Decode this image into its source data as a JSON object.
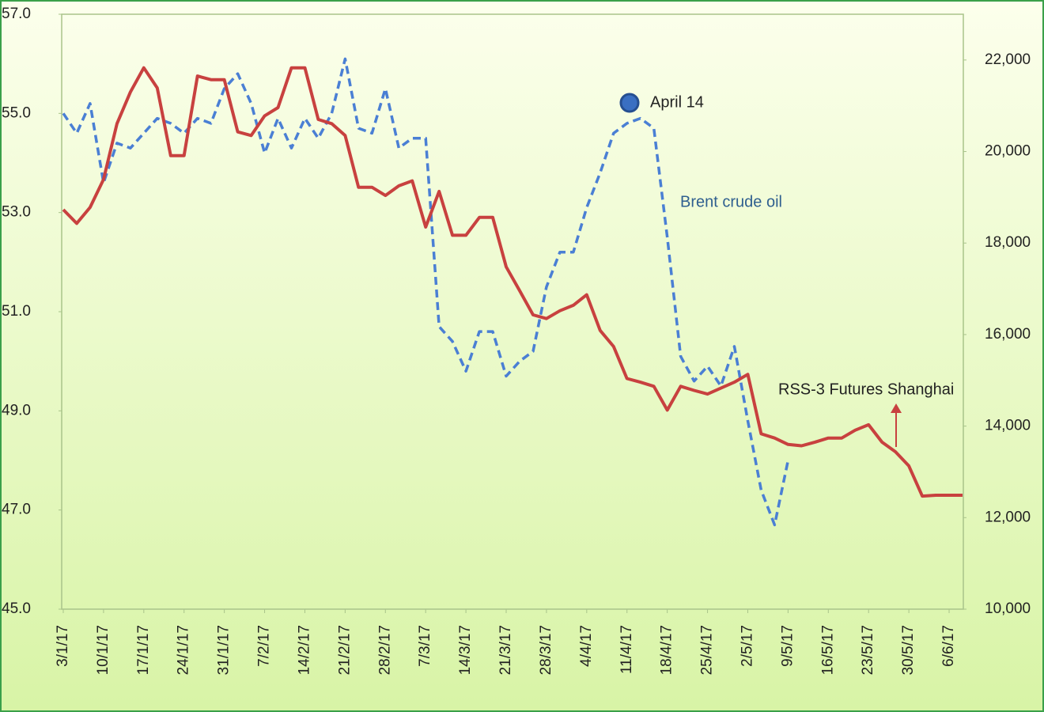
{
  "chart_data": {
    "type": "line",
    "categories": [
      "3/1/17",
      null,
      null,
      "10/1/17",
      null,
      null,
      "17/1/17",
      null,
      null,
      "24/1/17",
      null,
      null,
      "31/1/17",
      null,
      null,
      "7/2/17",
      null,
      null,
      "14/2/17",
      null,
      null,
      "21/2/17",
      null,
      null,
      "28/2/17",
      null,
      null,
      "7/3/17",
      null,
      null,
      "14/3/17",
      null,
      null,
      "21/3/17",
      null,
      null,
      "28/3/17",
      null,
      null,
      "4/4/17",
      null,
      null,
      "11/4/17",
      null,
      null,
      "18/4/17",
      null,
      null,
      "25/4/17",
      null,
      null,
      "2/5/17",
      null,
      null,
      "9/5/17",
      null,
      null,
      "16/5/17",
      null,
      null,
      "23/5/17",
      null,
      null,
      "30/5/17",
      null,
      null,
      "6/6/17",
      null
    ],
    "series": [
      {
        "name": "Brent crude oil",
        "color": "#4a7fd4",
        "dashed": true,
        "values": [
          55.0,
          54.6,
          55.2,
          53.6,
          54.4,
          54.3,
          54.6,
          54.9,
          54.8,
          54.6,
          54.9,
          54.8,
          55.5,
          55.8,
          55.2,
          54.2,
          54.9,
          54.3,
          54.9,
          54.5,
          55.0,
          56.1,
          54.7,
          54.6,
          55.5,
          54.3,
          54.5,
          54.5,
          50.7,
          50.4,
          49.8,
          50.6,
          50.6,
          49.7,
          50.0,
          50.2,
          51.5,
          52.2,
          52.2,
          53.1,
          53.8,
          54.6,
          54.8,
          54.9,
          54.7,
          52.5,
          50.1,
          49.6,
          49.9,
          49.5,
          50.3,
          48.8,
          47.4,
          46.7,
          48.0,
          null,
          null,
          null,
          null,
          null,
          null,
          null,
          null,
          null,
          null,
          null,
          null,
          null
        ]
      },
      {
        "name": "RSS-3 Futures Shanghai",
        "color": "#c8413f",
        "axis": "y2",
        "values": [
          18730,
          18430,
          18780,
          19390,
          20610,
          21300,
          21830,
          21390,
          19910,
          19910,
          21650,
          21570,
          21570,
          20430,
          20350,
          20780,
          20960,
          21830,
          21830,
          20700,
          20610,
          20350,
          19220,
          19220,
          19040,
          19250,
          19360,
          18350,
          19130,
          18170,
          18170,
          18560,
          18560,
          17480,
          16960,
          16430,
          16350,
          16520,
          16640,
          16870,
          16090,
          15740,
          15040,
          14960,
          14870,
          14350,
          14870,
          14780,
          14700,
          14830,
          14960,
          15130,
          13830,
          13740,
          13600,
          13570,
          13650,
          13740,
          13740,
          13910,
          14030,
          13650,
          13440,
          13130,
          12470,
          12490,
          12490,
          12490
        ]
      }
    ],
    "annotations": [
      "April 14",
      "Brent crude oil",
      "RSS-3 Futures Shanghai"
    ],
    "ylim": [
      45,
      57
    ],
    "yticks": [
      {
        "value": 45,
        "label": "45.0"
      },
      {
        "value": 47,
        "label": "47.0"
      },
      {
        "value": 49,
        "label": "49.0"
      },
      {
        "value": 51,
        "label": "51.0"
      },
      {
        "value": 53,
        "label": "53.0"
      },
      {
        "value": 55,
        "label": "55.0"
      },
      {
        "value": 57,
        "label": "57.0"
      }
    ],
    "y2lim": [
      10000,
      23000
    ],
    "y2ticks": [
      {
        "value": 10000,
        "label": "10,000"
      },
      {
        "value": 12000,
        "label": "12,000"
      },
      {
        "value": 14000,
        "label": "14,000"
      },
      {
        "value": 16000,
        "label": "16,000"
      },
      {
        "value": 18000,
        "label": "18,000"
      },
      {
        "value": 20000,
        "label": "20,000"
      },
      {
        "value": 22000,
        "label": "22,000"
      }
    ]
  }
}
